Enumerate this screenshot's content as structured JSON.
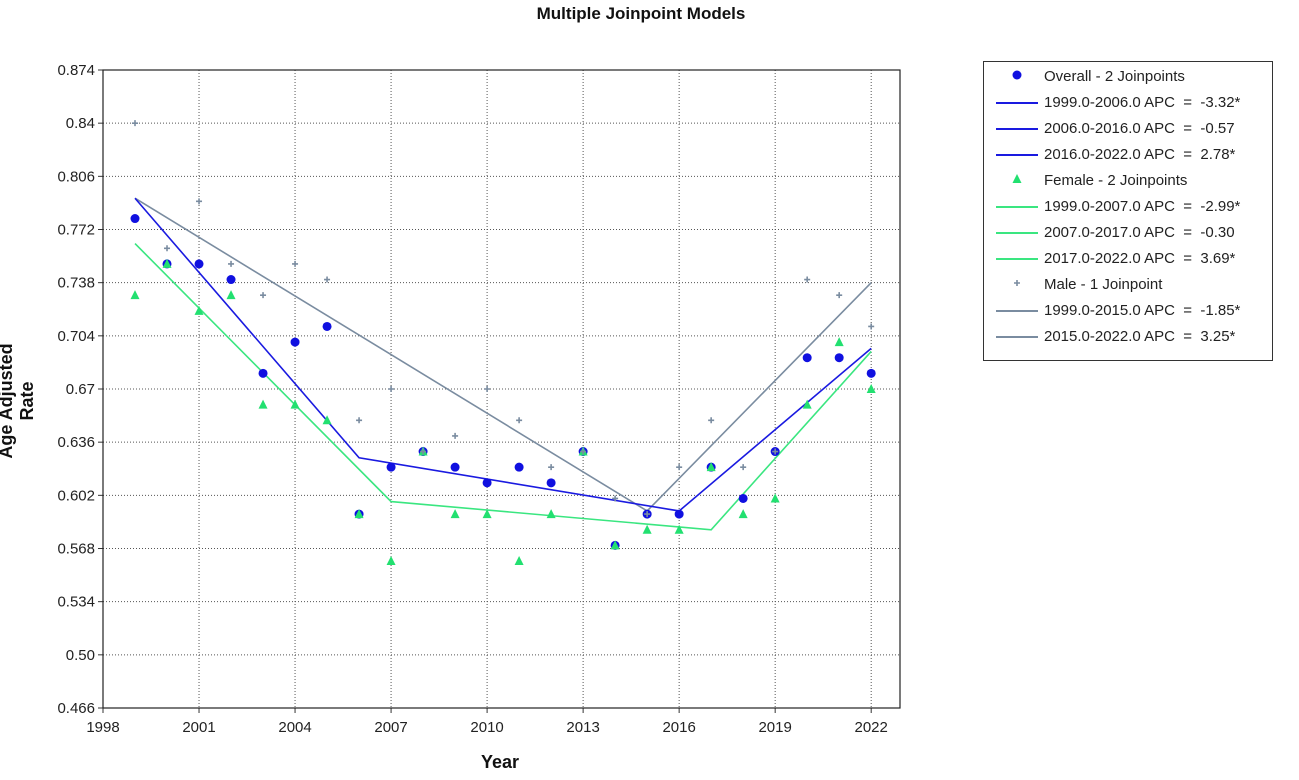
{
  "chart_data": {
    "type": "scatter",
    "title": "Multiple Joinpoint Models",
    "xlabel": "Year",
    "ylabel": "Age Adjusted Rate",
    "xlim": [
      1998,
      2022.9
    ],
    "ylim": [
      0.466,
      0.874
    ],
    "x_ticks": [
      "1998",
      "2001",
      "2004",
      "2007",
      "2010",
      "2013",
      "2016",
      "2019",
      "2022"
    ],
    "y_ticks": [
      "0.874",
      "0.84",
      "0.806",
      "0.772",
      "0.738",
      "0.704",
      "0.67",
      "0.636",
      "0.602",
      "0.568",
      "0.534",
      "0.50",
      "0.466"
    ],
    "grid": true,
    "legend_position": "right",
    "years": [
      1999,
      2000,
      2001,
      2002,
      2003,
      2004,
      2005,
      2006,
      2007,
      2008,
      2009,
      2010,
      2011,
      2012,
      2013,
      2014,
      2015,
      2016,
      2017,
      2018,
      2019,
      2020,
      2021,
      2022
    ],
    "series": [
      {
        "name": "Overall - 2 Joinpoints",
        "marker": "circle",
        "color": "#1010e0",
        "values": [
          0.779,
          0.75,
          0.75,
          0.74,
          0.68,
          0.7,
          0.71,
          0.59,
          0.62,
          0.63,
          0.62,
          0.61,
          0.62,
          0.61,
          0.63,
          0.57,
          0.59,
          0.59,
          0.62,
          0.6,
          0.63,
          0.69,
          0.69,
          0.68
        ],
        "fit": [
          [
            1999,
            0.792
          ],
          [
            2006,
            0.626
          ],
          [
            2016,
            0.592
          ],
          [
            2022,
            0.696
          ]
        ],
        "segments": [
          "1999.0-2006.0 APC  =  -3.32*",
          "2006.0-2016.0 APC  =  -0.57",
          "2016.0-2022.0 APC  =  2.78*"
        ]
      },
      {
        "name": "Female - 2 Joinpoints",
        "marker": "triangle",
        "color": "#22e070",
        "values": [
          0.73,
          0.75,
          0.72,
          0.73,
          0.66,
          0.66,
          0.65,
          0.59,
          0.56,
          0.63,
          0.59,
          0.59,
          0.56,
          0.59,
          0.63,
          0.57,
          0.58,
          0.58,
          0.62,
          0.59,
          0.6,
          0.66,
          0.7,
          0.67
        ],
        "fit": [
          [
            1999,
            0.763
          ],
          [
            2007,
            0.598
          ],
          [
            2017,
            0.58
          ],
          [
            2022,
            0.694
          ]
        ],
        "segments": [
          "1999.0-2007.0 APC  =  -2.99*",
          "2007.0-2017.0 APC  =  -0.30",
          "2017.0-2022.0 APC  =  3.69*"
        ]
      },
      {
        "name": "Male - 1 Joinpoint",
        "marker": "plus",
        "color": "#7a8ca0",
        "values": [
          0.84,
          0.76,
          0.79,
          0.75,
          0.73,
          0.75,
          0.74,
          0.65,
          0.67,
          0.63,
          0.64,
          0.67,
          0.65,
          0.62,
          0.63,
          0.6,
          0.59,
          0.62,
          0.65,
          0.62,
          0.63,
          0.74,
          0.73,
          0.71
        ],
        "fit": [
          [
            1999,
            0.792
          ],
          [
            2015,
            0.592
          ],
          [
            2022,
            0.738
          ]
        ],
        "segments": [
          "1999.0-2015.0 APC  =  -1.85*",
          "2015.0-2022.0 APC  =  3.25*"
        ]
      }
    ]
  },
  "legend": {
    "entries": [
      {
        "kind": "marker",
        "marker": "circle",
        "color": "#1010e0",
        "label": "Overall - 2 Joinpoints"
      },
      {
        "kind": "line",
        "color": "#1a1ae0",
        "label": "1999.0-2006.0 APC  =  -3.32*"
      },
      {
        "kind": "line",
        "color": "#1a1ae0",
        "label": "2006.0-2016.0 APC  =  -0.57"
      },
      {
        "kind": "line",
        "color": "#1a1ae0",
        "label": "2016.0-2022.0 APC  =  2.78*"
      },
      {
        "kind": "marker",
        "marker": "triangle",
        "color": "#22e070",
        "label": "Female - 2 Joinpoints"
      },
      {
        "kind": "line",
        "color": "#3ae680",
        "label": "1999.0-2007.0 APC  =  -2.99*"
      },
      {
        "kind": "line",
        "color": "#3ae680",
        "label": "2007.0-2017.0 APC  =  -0.30"
      },
      {
        "kind": "line",
        "color": "#3ae680",
        "label": "2017.0-2022.0 APC  =  3.69*"
      },
      {
        "kind": "marker",
        "marker": "plus",
        "color": "#7a8ca0",
        "label": "Male - 1 Joinpoint"
      },
      {
        "kind": "line",
        "color": "#7a8ca0",
        "label": "1999.0-2015.0 APC  =  -1.85*"
      },
      {
        "kind": "line",
        "color": "#7a8ca0",
        "label": "2015.0-2022.0 APC  =  3.25*"
      }
    ]
  }
}
